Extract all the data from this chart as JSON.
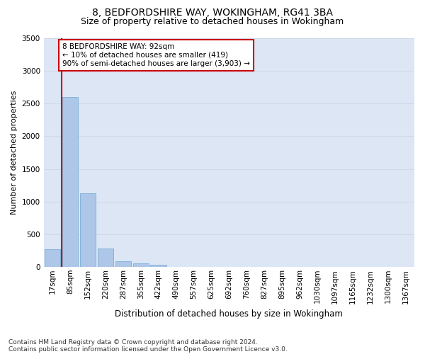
{
  "title1": "8, BEDFORDSHIRE WAY, WOKINGHAM, RG41 3BA",
  "title2": "Size of property relative to detached houses in Wokingham",
  "xlabel": "Distribution of detached houses by size in Wokingham",
  "ylabel": "Number of detached properties",
  "bar_labels": [
    "17sqm",
    "85sqm",
    "152sqm",
    "220sqm",
    "287sqm",
    "355sqm",
    "422sqm",
    "490sqm",
    "557sqm",
    "625sqm",
    "692sqm",
    "760sqm",
    "827sqm",
    "895sqm",
    "962sqm",
    "1030sqm",
    "1097sqm",
    "1165sqm",
    "1232sqm",
    "1300sqm",
    "1367sqm"
  ],
  "bar_values": [
    270,
    2600,
    1130,
    280,
    90,
    55,
    35,
    0,
    0,
    0,
    0,
    0,
    0,
    0,
    0,
    0,
    0,
    0,
    0,
    0,
    0
  ],
  "bar_color": "#aec6e8",
  "bar_edge_color": "#7aafd4",
  "grid_color": "#d0d8e8",
  "background_color": "#dce6f5",
  "vline_color": "#cc0000",
  "annotation_text": "8 BEDFORDSHIRE WAY: 92sqm\n← 10% of detached houses are smaller (419)\n90% of semi-detached houses are larger (3,903) →",
  "annotation_box_color": "#ffffff",
  "annotation_box_edge": "#cc0000",
  "ylim": [
    0,
    3500
  ],
  "yticks": [
    0,
    500,
    1000,
    1500,
    2000,
    2500,
    3000,
    3500
  ],
  "footnote1": "Contains HM Land Registry data © Crown copyright and database right 2024.",
  "footnote2": "Contains public sector information licensed under the Open Government Licence v3.0.",
  "title1_fontsize": 10,
  "title2_fontsize": 9,
  "xlabel_fontsize": 8.5,
  "ylabel_fontsize": 8,
  "tick_fontsize": 7.5,
  "annot_fontsize": 7.5,
  "footnote_fontsize": 6.5
}
